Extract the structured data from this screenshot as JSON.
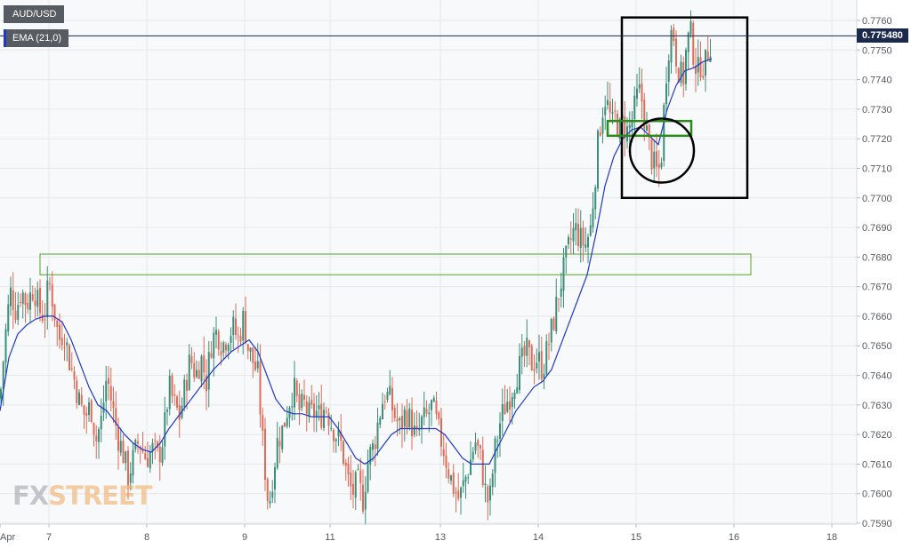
{
  "header": {
    "symbol": "AUD/USD",
    "indicator": "EMA (21,0)"
  },
  "colors": {
    "background": "#ffffff",
    "plot_background": "#f8f9fb",
    "grid": "#e6e8ec",
    "bull_candle": "#3b8f78",
    "bear_candle": "#e06b57",
    "ema_line": "#2038c9",
    "price_line": "#1b2a4a",
    "price_tag": "#1b2a4a",
    "chip_bg": "#575c62",
    "zone_green": "#6fb34a",
    "dark_green": "#2a8a1a",
    "annotation_black": "#000000",
    "watermark_gray": "#8f959c",
    "watermark_orange": "#f0a04b"
  },
  "watermark": {
    "part1": "FX",
    "part2": "STREET"
  },
  "last_price": "0.775480",
  "chart_data": {
    "type": "candlestick",
    "title": "AUD/USD",
    "y_axis": {
      "ticks": [
        "0.7760",
        "0.7750",
        "0.7740",
        "0.7730",
        "0.7720",
        "0.7710",
        "0.7700",
        "0.7690",
        "0.7680",
        "0.7670",
        "0.7660",
        "0.7650",
        "0.7640",
        "0.7630",
        "0.7620",
        "0.7610",
        "0.7600",
        "0.7590"
      ],
      "range": [
        0.759,
        0.7762
      ]
    },
    "x_axis": {
      "ticks": [
        "Apr",
        "7",
        "8",
        "9",
        "11",
        "13",
        "14",
        "15",
        "16",
        "18"
      ]
    },
    "series": [
      {
        "name": "AUD/USD",
        "type": "candlestick",
        "path_close": [
          [
            0,
            0.7632
          ],
          [
            8,
            0.766
          ],
          [
            12,
            0.7668
          ],
          [
            18,
            0.7662
          ],
          [
            24,
            0.7669
          ],
          [
            30,
            0.7664
          ],
          [
            38,
            0.767
          ],
          [
            44,
            0.7662
          ],
          [
            50,
            0.766
          ],
          [
            55,
            0.7672
          ],
          [
            60,
            0.7664
          ],
          [
            66,
            0.7652
          ],
          [
            72,
            0.7655
          ],
          [
            78,
            0.7645
          ],
          [
            84,
            0.7638
          ],
          [
            90,
            0.763
          ],
          [
            96,
            0.7626
          ],
          [
            102,
            0.763
          ],
          [
            108,
            0.7618
          ],
          [
            114,
            0.7625
          ],
          [
            120,
            0.764
          ],
          [
            126,
            0.763
          ],
          [
            132,
            0.762
          ],
          [
            138,
            0.7614
          ],
          [
            144,
            0.7606
          ],
          [
            150,
            0.7612
          ],
          [
            156,
            0.7618
          ],
          [
            164,
            0.7612
          ],
          [
            172,
            0.7615
          ],
          [
            178,
            0.7612
          ],
          [
            184,
            0.762
          ],
          [
            190,
            0.7636
          ],
          [
            196,
            0.763
          ],
          [
            202,
            0.7626
          ],
          [
            208,
            0.7636
          ],
          [
            214,
            0.7646
          ],
          [
            220,
            0.764
          ],
          [
            226,
            0.7646
          ],
          [
            232,
            0.7638
          ],
          [
            238,
            0.7652
          ],
          [
            244,
            0.7655
          ],
          [
            250,
            0.765
          ],
          [
            256,
            0.7654
          ],
          [
            262,
            0.7656
          ],
          [
            268,
            0.7652
          ],
          [
            274,
            0.766
          ],
          [
            278,
            0.765
          ],
          [
            284,
            0.7645
          ],
          [
            290,
            0.764
          ],
          [
            294,
            0.7622
          ],
          [
            298,
            0.7608
          ],
          [
            302,
            0.7595
          ],
          [
            306,
            0.7605
          ],
          [
            312,
            0.7618
          ],
          [
            318,
            0.7622
          ],
          [
            324,
            0.763
          ],
          [
            330,
            0.7636
          ],
          [
            336,
            0.7628
          ],
          [
            342,
            0.763
          ],
          [
            348,
            0.7626
          ],
          [
            354,
            0.7628
          ],
          [
            360,
            0.7626
          ],
          [
            366,
            0.763
          ],
          [
            372,
            0.7624
          ],
          [
            378,
            0.762
          ],
          [
            384,
            0.7616
          ],
          [
            390,
            0.7606
          ],
          [
            396,
            0.76
          ],
          [
            402,
            0.7604
          ],
          [
            408,
            0.7598
          ],
          [
            414,
            0.7612
          ],
          [
            420,
            0.7616
          ],
          [
            426,
            0.7626
          ],
          [
            432,
            0.7634
          ],
          [
            438,
            0.7632
          ],
          [
            444,
            0.7626
          ],
          [
            450,
            0.7622
          ],
          [
            456,
            0.7628
          ],
          [
            462,
            0.7624
          ],
          [
            468,
            0.7618
          ],
          [
            474,
            0.7624
          ],
          [
            480,
            0.7626
          ],
          [
            486,
            0.763
          ],
          [
            492,
            0.7622
          ],
          [
            498,
            0.7616
          ],
          [
            504,
            0.7608
          ],
          [
            510,
            0.7602
          ],
          [
            516,
            0.7598
          ],
          [
            522,
            0.7604
          ],
          [
            528,
            0.761
          ],
          [
            534,
            0.7618
          ],
          [
            540,
            0.7612
          ],
          [
            546,
            0.76
          ],
          [
            550,
            0.7596
          ],
          [
            556,
            0.7614
          ],
          [
            562,
            0.7624
          ],
          [
            568,
            0.763
          ],
          [
            574,
            0.7634
          ],
          [
            580,
            0.764
          ],
          [
            586,
            0.7644
          ],
          [
            592,
            0.7648
          ],
          [
            598,
            0.7644
          ],
          [
            604,
            0.7646
          ],
          [
            610,
            0.7642
          ],
          [
            616,
            0.765
          ],
          [
            622,
            0.7658
          ],
          [
            628,
            0.7668
          ],
          [
            634,
            0.7676
          ],
          [
            640,
            0.7684
          ],
          [
            646,
            0.769
          ],
          [
            652,
            0.7686
          ],
          [
            658,
            0.7684
          ],
          [
            664,
            0.769
          ],
          [
            668,
            0.7704
          ],
          [
            672,
            0.7718
          ],
          [
            676,
            0.7728
          ],
          [
            680,
            0.7734
          ],
          [
            684,
            0.773
          ],
          [
            688,
            0.7724
          ],
          [
            692,
            0.7728
          ],
          [
            696,
            0.7722
          ],
          [
            700,
            0.7726
          ],
          [
            704,
            0.7722
          ],
          [
            708,
            0.7724
          ],
          [
            712,
            0.7728
          ],
          [
            716,
            0.7734
          ],
          [
            720,
            0.7736
          ],
          [
            724,
            0.7728
          ],
          [
            728,
            0.772
          ],
          [
            732,
            0.7714
          ],
          [
            736,
            0.771
          ],
          [
            740,
            0.7708
          ],
          [
            744,
            0.7716
          ],
          [
            748,
            0.774
          ],
          [
            752,
            0.7752
          ],
          [
            756,
            0.7758
          ],
          [
            760,
            0.7748
          ],
          [
            764,
            0.7742
          ],
          [
            768,
            0.774
          ],
          [
            772,
            0.7752
          ],
          [
            776,
            0.7756
          ],
          [
            780,
            0.7748
          ],
          [
            784,
            0.7742
          ],
          [
            788,
            0.7746
          ],
          [
            792,
            0.7744
          ],
          [
            796,
            0.775
          ],
          [
            800,
            0.7754
          ]
        ]
      },
      {
        "name": "EMA (21,0)",
        "type": "line",
        "path": [
          [
            0,
            0.7628
          ],
          [
            10,
            0.7646
          ],
          [
            20,
            0.7654
          ],
          [
            30,
            0.7657
          ],
          [
            40,
            0.7659
          ],
          [
            50,
            0.766
          ],
          [
            60,
            0.766
          ],
          [
            70,
            0.7658
          ],
          [
            80,
            0.7652
          ],
          [
            90,
            0.7644
          ],
          [
            100,
            0.7636
          ],
          [
            110,
            0.763
          ],
          [
            120,
            0.7628
          ],
          [
            130,
            0.7624
          ],
          [
            140,
            0.762
          ],
          [
            150,
            0.7617
          ],
          [
            160,
            0.7615
          ],
          [
            170,
            0.7614
          ],
          [
            180,
            0.7617
          ],
          [
            190,
            0.7622
          ],
          [
            200,
            0.7626
          ],
          [
            210,
            0.763
          ],
          [
            220,
            0.7634
          ],
          [
            230,
            0.7638
          ],
          [
            240,
            0.7642
          ],
          [
            250,
            0.7645
          ],
          [
            260,
            0.7648
          ],
          [
            270,
            0.765
          ],
          [
            280,
            0.7652
          ],
          [
            290,
            0.7648
          ],
          [
            300,
            0.764
          ],
          [
            310,
            0.7632
          ],
          [
            320,
            0.7628
          ],
          [
            330,
            0.7627
          ],
          [
            340,
            0.7627
          ],
          [
            350,
            0.7626
          ],
          [
            360,
            0.7626
          ],
          [
            370,
            0.7626
          ],
          [
            380,
            0.7622
          ],
          [
            390,
            0.7617
          ],
          [
            400,
            0.7612
          ],
          [
            410,
            0.761
          ],
          [
            420,
            0.7612
          ],
          [
            430,
            0.7616
          ],
          [
            440,
            0.762
          ],
          [
            450,
            0.7622
          ],
          [
            460,
            0.7622
          ],
          [
            470,
            0.7622
          ],
          [
            480,
            0.7622
          ],
          [
            490,
            0.7622
          ],
          [
            500,
            0.762
          ],
          [
            510,
            0.7616
          ],
          [
            520,
            0.7612
          ],
          [
            530,
            0.761
          ],
          [
            540,
            0.761
          ],
          [
            550,
            0.761
          ],
          [
            560,
            0.7616
          ],
          [
            570,
            0.7622
          ],
          [
            580,
            0.7628
          ],
          [
            590,
            0.7632
          ],
          [
            600,
            0.7636
          ],
          [
            610,
            0.7638
          ],
          [
            620,
            0.7642
          ],
          [
            630,
            0.765
          ],
          [
            640,
            0.7658
          ],
          [
            650,
            0.7666
          ],
          [
            660,
            0.7674
          ],
          [
            670,
            0.7688
          ],
          [
            680,
            0.7704
          ],
          [
            690,
            0.7714
          ],
          [
            700,
            0.772
          ],
          [
            710,
            0.7723
          ],
          [
            720,
            0.7724
          ],
          [
            730,
            0.7721
          ],
          [
            740,
            0.7718
          ],
          [
            750,
            0.773
          ],
          [
            760,
            0.7738
          ],
          [
            770,
            0.7743
          ],
          [
            780,
            0.7744
          ],
          [
            790,
            0.7746
          ],
          [
            800,
            0.7747
          ]
        ]
      }
    ],
    "annotations": [
      {
        "type": "horizontal_zone",
        "from": 0.7674,
        "to": 0.7681,
        "color": "green"
      },
      {
        "type": "rectangle",
        "from": 0.77,
        "to": 0.7761,
        "color": "black"
      },
      {
        "type": "horizontal_zone",
        "from": 0.7721,
        "to": 0.7726,
        "color": "dark_green"
      },
      {
        "type": "circle",
        "center_price": 0.7716,
        "color": "black"
      },
      {
        "type": "price_line",
        "value": 0.77548
      }
    ],
    "grid": true,
    "legend": "top-left"
  }
}
